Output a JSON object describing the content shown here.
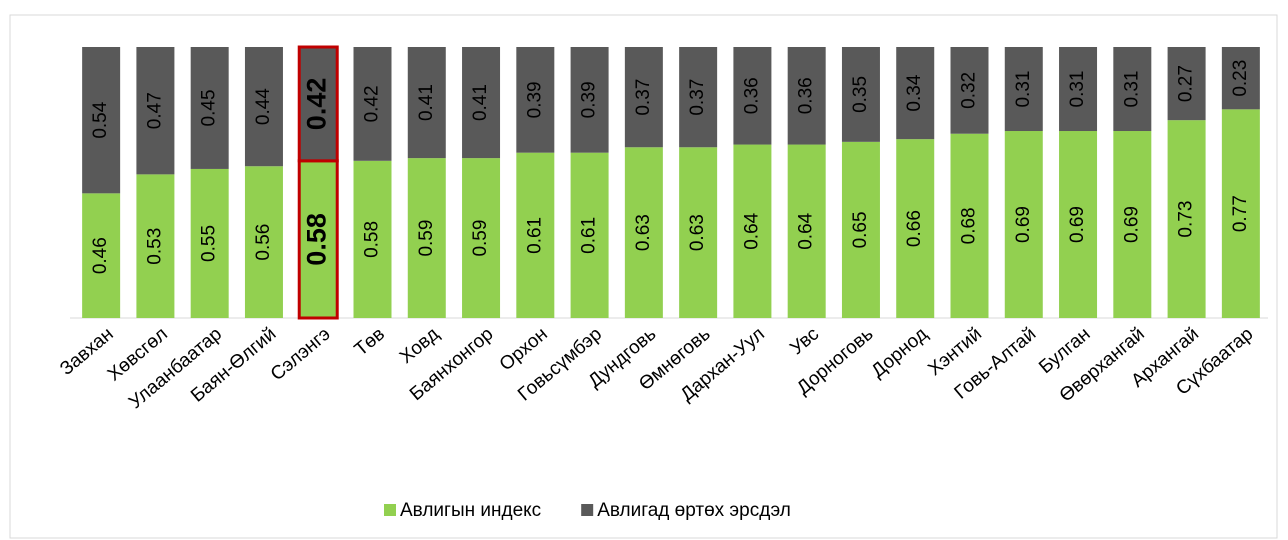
{
  "chart_data": {
    "type": "stacked_bar",
    "categories": [
      "Завхан",
      "Хөвсгөл",
      "Улаанбаатар",
      "Баян-Өлгий",
      "Сэлэнгэ",
      "Төв",
      "Ховд",
      "Баянхонгор",
      "Орхон",
      "Говьсүмбэр",
      "Дундговь",
      "Өмнөговь",
      "Дархан-Уул",
      "Увс",
      "Дорноговь",
      "Дорнод",
      "Хэнтий",
      "Говь-Алтай",
      "Булган",
      "Өвөрхангай",
      "Архангай",
      "Сүхбаатар"
    ],
    "series": [
      {
        "name": "Авлигын индекс",
        "color": "#92d050",
        "values": [
          0.46,
          0.53,
          0.55,
          0.56,
          0.58,
          0.58,
          0.59,
          0.59,
          0.61,
          0.61,
          0.63,
          0.63,
          0.64,
          0.64,
          0.65,
          0.66,
          0.68,
          0.69,
          0.69,
          0.69,
          0.73,
          0.77
        ]
      },
      {
        "name": "Авлигад өртөх эрсдэл",
        "color": "#595959",
        "values": [
          0.54,
          0.47,
          0.45,
          0.44,
          0.42,
          0.42,
          0.41,
          0.41,
          0.39,
          0.39,
          0.37,
          0.37,
          0.36,
          0.36,
          0.35,
          0.34,
          0.32,
          0.31,
          0.31,
          0.31,
          0.27,
          0.23
        ]
      }
    ],
    "ylim": [
      0,
      1
    ],
    "highlight": 4,
    "legend": "bottom"
  }
}
